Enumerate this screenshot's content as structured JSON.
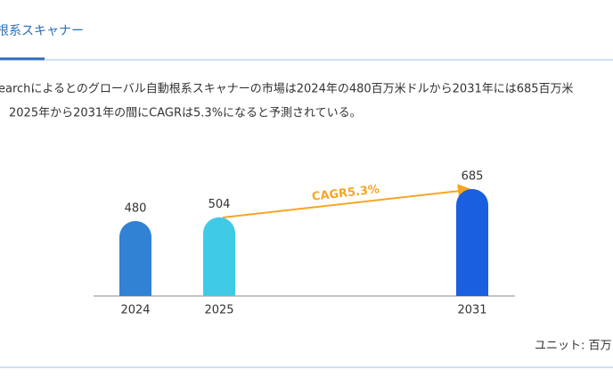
{
  "header": {
    "title": "根系スキャナー"
  },
  "paragraph": [
    "earchによるとのグローバル自動根系スキャナーの市場は2024年の480百万米ドルから2031年には685百万米",
    "2025年から2031年の間にCAGRは5.3%になると予測されている。"
  ],
  "chart_data": {
    "type": "bar",
    "categories": [
      "2024",
      "2025",
      "2031"
    ],
    "values": [
      480,
      504,
      685
    ],
    "colors": [
      "#3182d4",
      "#3fcbe6",
      "#1a5fe0"
    ],
    "annotation": "CAGR5.3%",
    "unit": "ユニット: 百万"
  }
}
